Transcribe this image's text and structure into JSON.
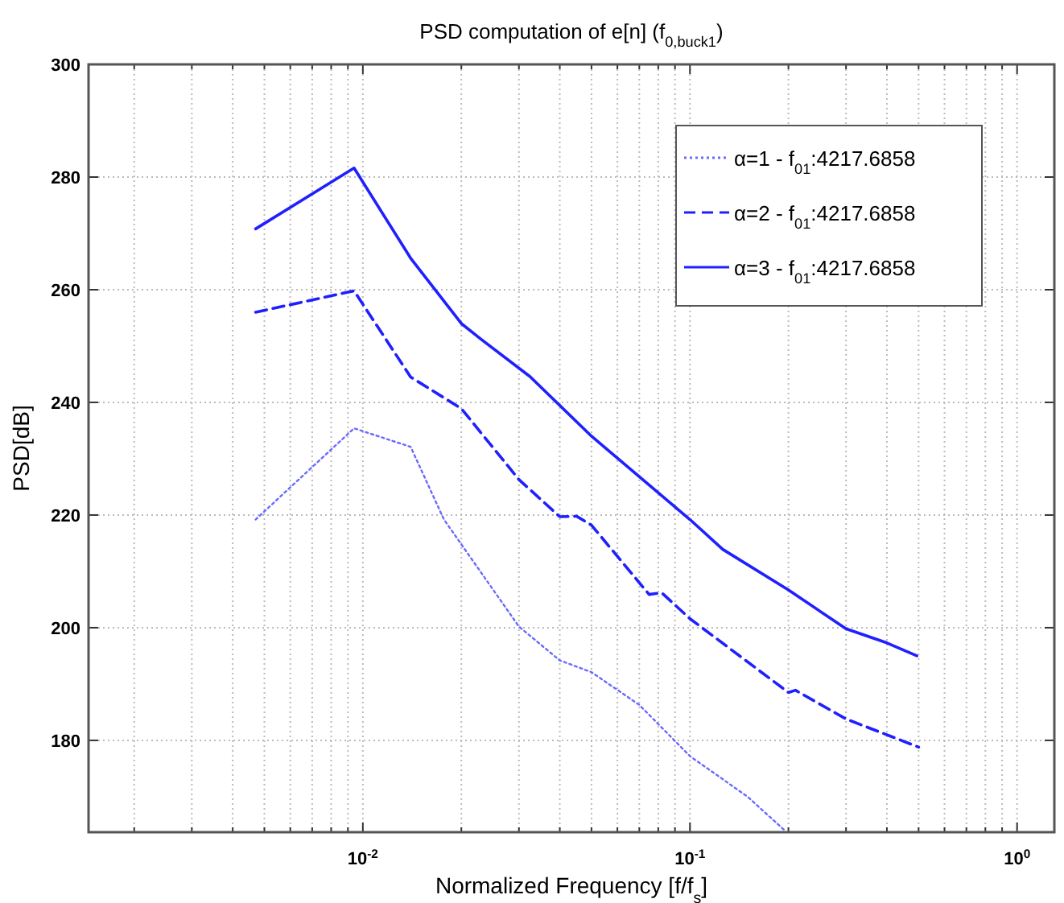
{
  "chart_data": {
    "type": "line",
    "title": "PSD computation of e[n] (f$_{0,buck1}$)",
    "xlabel": "Normalized Frequency [f/f$_{s}$]",
    "ylabel": "PSD[dB]",
    "log": "x",
    "grid": true,
    "legend": "top right",
    "xlim": [
      0.00145,
      1.3
    ],
    "ylim": [
      163.7,
      300
    ],
    "xticks": [
      {
        "value": 0.002,
        "label": null
      },
      {
        "value": 0.003,
        "label": null
      },
      {
        "value": 0.004,
        "label": null
      },
      {
        "value": 0.005,
        "label": null
      },
      {
        "value": 0.006,
        "label": null
      },
      {
        "value": 0.007,
        "label": null
      },
      {
        "value": 0.008,
        "label": null
      },
      {
        "value": 0.009,
        "label": null
      },
      {
        "value": 0.01,
        "label": "10$^{-2}$"
      },
      {
        "value": 0.02,
        "label": null
      },
      {
        "value": 0.03,
        "label": null
      },
      {
        "value": 0.04,
        "label": null
      },
      {
        "value": 0.05,
        "label": null
      },
      {
        "value": 0.06,
        "label": null
      },
      {
        "value": 0.07,
        "label": null
      },
      {
        "value": 0.08,
        "label": null
      },
      {
        "value": 0.09,
        "label": null
      },
      {
        "value": 0.1,
        "label": "10$^{-1}$"
      },
      {
        "value": 0.2,
        "label": null
      },
      {
        "value": 0.3,
        "label": null
      },
      {
        "value": 0.4,
        "label": null
      },
      {
        "value": 0.5,
        "label": null
      },
      {
        "value": 0.6,
        "label": null
      },
      {
        "value": 0.7,
        "label": null
      },
      {
        "value": 0.8,
        "label": null
      },
      {
        "value": 0.9,
        "label": null
      },
      {
        "value": 1,
        "label": "10$^{0}$"
      }
    ],
    "yticks": [
      180,
      200,
      220,
      240,
      260,
      280,
      300
    ],
    "series": [
      {
        "name": "α=1 - f$_{01}$:4217.6858",
        "color": "#6a6aff",
        "line_style": "dotted",
        "x": [
          0.0047,
          0.0094,
          0.014,
          0.0177,
          0.03,
          0.04,
          0.05,
          0.07,
          0.1,
          0.15,
          0.195
        ],
        "values": [
          219.2,
          235.4,
          232.1,
          219.2,
          200.2,
          194.2,
          192.1,
          186.3,
          177.2,
          170,
          164
        ]
      },
      {
        "name": "α=2 - f$_{01}$:4217.6858",
        "color": "#2020ff",
        "line_style": "dashed",
        "x": [
          0.0047,
          0.0094,
          0.014,
          0.02,
          0.03,
          0.04,
          0.045,
          0.05,
          0.075,
          0.082,
          0.1,
          0.2,
          0.21,
          0.3,
          0.5
        ],
        "values": [
          256,
          259.8,
          244.5,
          238.9,
          226.3,
          219.7,
          219.8,
          218.2,
          205.9,
          206.2,
          201.6,
          188.5,
          188.9,
          183.8,
          178.8
        ]
      },
      {
        "name": "α=3 - f$_{01}$:4217.6858",
        "color": "#2020ff",
        "line_style": "solid",
        "x": [
          0.0047,
          0.0094,
          0.014,
          0.02,
          0.023,
          0.0324,
          0.05,
          0.1,
          0.126,
          0.2,
          0.3,
          0.4,
          0.494
        ],
        "values": [
          270.8,
          281.6,
          265.6,
          254,
          251.2,
          244.6,
          234,
          219.2,
          213.9,
          206.7,
          199.8,
          197.3,
          195
        ]
      }
    ]
  }
}
